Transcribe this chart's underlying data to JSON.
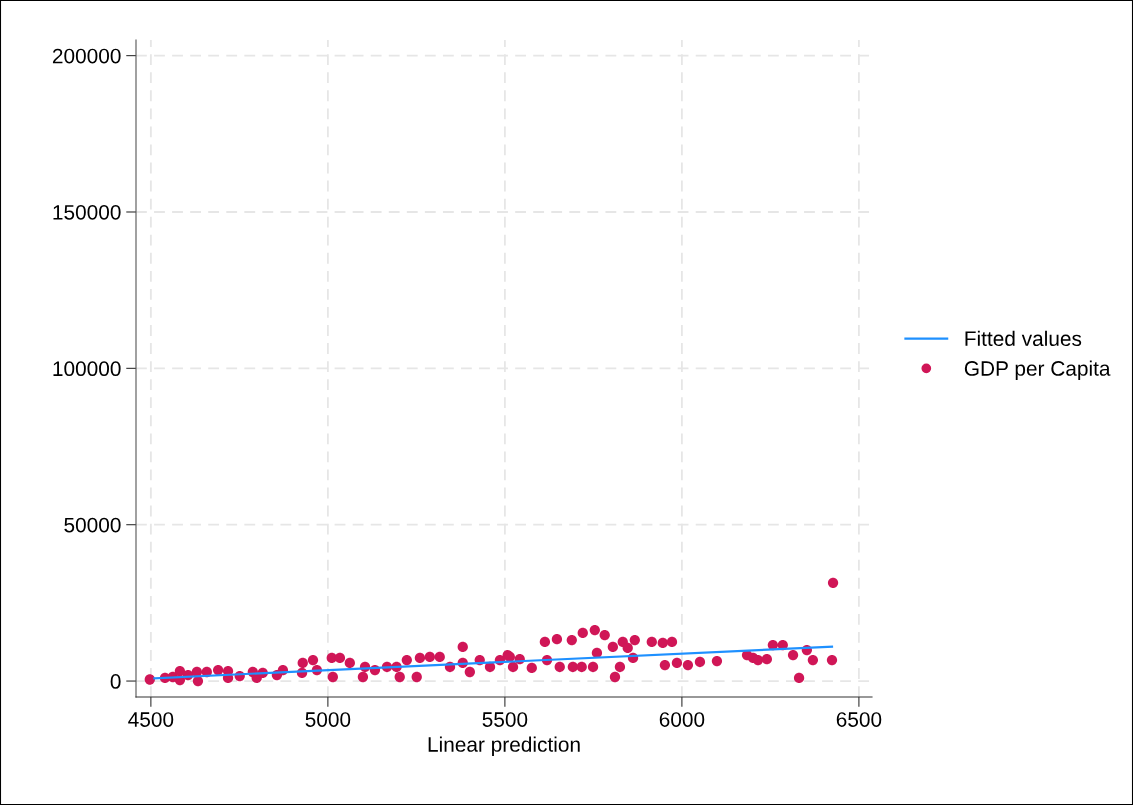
{
  "chart_data": {
    "type": "scatter",
    "xlabel": "Linear prediction",
    "xlim": [
      4458,
      6537
    ],
    "ylim": [
      -5100,
      205000
    ],
    "xticks": [
      4500,
      5000,
      5500,
      6000,
      6500
    ],
    "yticks": [
      0,
      50000,
      100000,
      150000,
      200000
    ],
    "grid": true,
    "legend": "right",
    "series": [
      {
        "name": "Fitted values",
        "type": "line",
        "color": "#1e90ff",
        "marker": "none",
        "line_style": "solid",
        "x": [
          4510,
          6424
        ],
        "values": [
          900,
          11000
        ]
      },
      {
        "name": "GDP per Capita",
        "color": "#d01657",
        "marker": "circle",
        "x": [
          4497,
          4540,
          4562,
          4582,
          4582,
          4605,
          4633,
          4630,
          4658,
          4690,
          4718,
          4718,
          4751,
          4788,
          4799,
          4816,
          4856,
          4873,
          4929,
          4927,
          4958,
          4969,
          5011,
          5034,
          5014,
          5062,
          5099,
          5105,
          5133,
          5167,
          5194,
          5203,
          5223,
          5251,
          5260,
          5288,
          5316,
          5345,
          5381,
          5381,
          5401,
          5429,
          5458,
          5486,
          5508,
          5514,
          5542,
          5523,
          5576,
          5613,
          5619,
          5647,
          5655,
          5689,
          5692,
          5720,
          5717,
          5754,
          5760,
          5749,
          5782,
          5805,
          5811,
          5825,
          5833,
          5847,
          5867,
          5862,
          5915,
          5946,
          5972,
          5952,
          5986,
          6017,
          6051,
          6099,
          6184,
          6201,
          6215,
          6240,
          6257,
          6285,
          6314,
          6331,
          6353,
          6370,
          6424,
          6427
        ],
        "values": [
          500,
          1000,
          1300,
          3200,
          300,
          1900,
          0,
          2900,
          2900,
          3500,
          3200,
          1000,
          1600,
          2900,
          1000,
          2600,
          1900,
          3500,
          5800,
          2600,
          6700,
          3500,
          7400,
          7400,
          1300,
          5800,
          1300,
          4500,
          3500,
          4500,
          4500,
          1300,
          6700,
          1300,
          7400,
          7700,
          7700,
          4500,
          10900,
          5800,
          2900,
          6700,
          4500,
          6700,
          8300,
          7700,
          7000,
          4500,
          4200,
          12500,
          6700,
          13400,
          4500,
          13100,
          4500,
          15400,
          4500,
          16300,
          9000,
          4500,
          14700,
          10900,
          1300,
          4500,
          12500,
          10600,
          13100,
          7400,
          12500,
          12200,
          12500,
          5100,
          5800,
          5100,
          6100,
          6400,
          8300,
          7400,
          6700,
          7000,
          11500,
          11500,
          8300,
          1000,
          9900,
          6700,
          6700,
          31400
        ]
      }
    ]
  }
}
